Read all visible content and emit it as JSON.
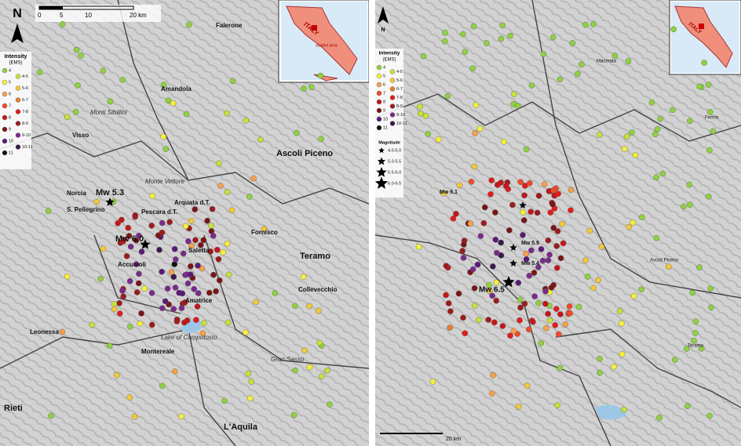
{
  "left_map": {
    "north": "N",
    "scale_bar": [
      "0",
      "5",
      "10",
      "20 km"
    ],
    "legend": {
      "title": "Intensity",
      "subtitle": "(EMS)",
      "classes": [
        "4",
        "4-5",
        "5",
        "5-6",
        "6",
        "6-7",
        "7",
        "7-8",
        "8",
        "8-9",
        "9",
        "9-10",
        "10",
        "10-11",
        "11"
      ]
    },
    "inset": {
      "country": "ITALY",
      "note": "studied area"
    },
    "places": [
      "Falerone",
      "Amandola",
      "Monti Sibillini",
      "Visso",
      "Ascoli Piceno",
      "Monte Vettore",
      "Norcia",
      "S. Pellegrino",
      "Pescara d.T.",
      "Arquata d.T.",
      "Saletta",
      "Fornisco",
      "Accumoli",
      "Teramo",
      "Amatrice",
      "Collevecchio",
      "Leonessa",
      "Lake of Campotosto",
      "Montereale",
      "Gran Sasso",
      "Rieti",
      "L'Aquila"
    ],
    "epicenters": [
      "Mw 5.3",
      "Mw 6.0"
    ]
  },
  "right_map": {
    "north": "N",
    "scale_bar": [
      "20 km"
    ],
    "legend": {
      "title": "Intensity",
      "subtitle": "(EMS)",
      "classes": [
        "4",
        "4-5",
        "5",
        "5-6",
        "6",
        "6-7",
        "7",
        "7-8",
        "8",
        "8-9",
        "9",
        "9-10",
        "10",
        "10-11",
        "11"
      ]
    },
    "magnitude": {
      "title": "Magnitude",
      "classes": [
        "4.0-5.0",
        "5.0-5.5",
        "5.5-6.0",
        "6.0-6.5"
      ]
    },
    "inset": {
      "country": "ITALY"
    },
    "places": [
      "Macerata",
      "Fermo",
      "Ascoli Piceno",
      "Teramo"
    ],
    "epicenters": [
      "Mw 6.1",
      "Mw 5.9",
      "Mw 5.4",
      "Mw 6.5"
    ]
  }
}
